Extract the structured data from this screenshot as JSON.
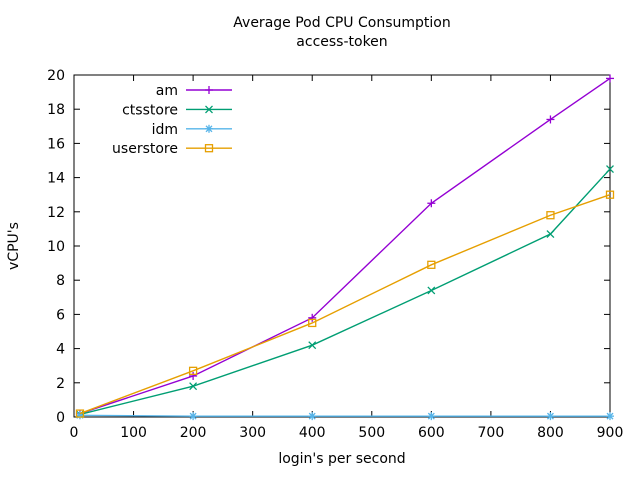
{
  "chart_data": {
    "type": "line",
    "title": "Average Pod CPU Consumption",
    "subtitle": "access-token",
    "xlabel": "login's per second",
    "ylabel": "vCPU's",
    "xlim": [
      0,
      900
    ],
    "ylim": [
      0,
      20
    ],
    "xtick_step": 100,
    "ytick_step": 2,
    "grid": false,
    "legend_position": "top-left-inside",
    "axis_color": "#000000",
    "x": [
      10,
      200,
      400,
      600,
      800,
      900
    ],
    "series": [
      {
        "name": "am",
        "color": "#9400d3",
        "marker": "plus",
        "values": [
          0.2,
          2.4,
          5.8,
          12.5,
          17.4,
          19.8
        ]
      },
      {
        "name": "ctsstore",
        "color": "#009e73",
        "marker": "cross",
        "values": [
          0.15,
          1.8,
          4.2,
          7.4,
          10.7,
          14.5
        ]
      },
      {
        "name": "idm",
        "color": "#56b4e9",
        "marker": "asterisk",
        "values": [
          0.1,
          0.05,
          0.05,
          0.05,
          0.05,
          0.05
        ]
      },
      {
        "name": "userstore",
        "color": "#e69f00",
        "marker": "square",
        "values": [
          0.2,
          2.7,
          5.5,
          8.9,
          11.8,
          13.0
        ]
      }
    ]
  }
}
